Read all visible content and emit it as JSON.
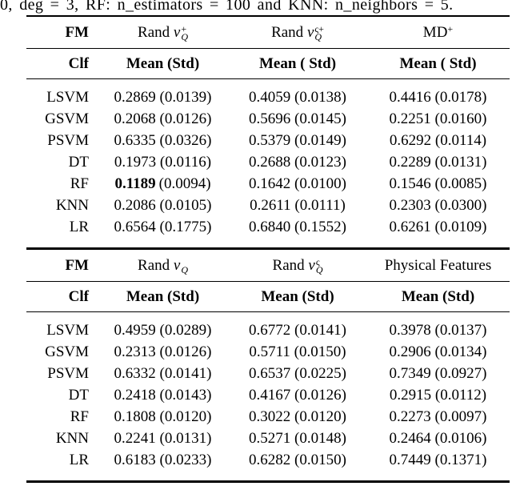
{
  "page": {
    "background": "#ffffff",
    "text_color": "#000000"
  },
  "caption_fragment": "0, deg = 3, RF: n_estimators = 100 and KNN: n_neighbors = 5.",
  "tables": [
    {
      "header_row1": {
        "fm": "FM",
        "c1": {
          "prefix": "Rand ",
          "var": "v",
          "sub": "Q",
          "sup": "+"
        },
        "c2": {
          "prefix": "Rand ",
          "var": "v",
          "sub": "Q",
          "sup": "ς+"
        },
        "c3": {
          "base": "MD",
          "sup": "+"
        }
      },
      "header_row2": {
        "clf": "Clf",
        "c1": "Mean (Std)",
        "c2": "Mean ( Std)",
        "c3": "Mean ( Std)"
      },
      "rows": [
        {
          "clf": "LSVM",
          "c1": "0.2869 (0.0139)",
          "c2": "0.4059 (0.0138)",
          "c3": "0.4416 (0.0178)"
        },
        {
          "clf": "GSVM",
          "c1": "0.2068 (0.0126)",
          "c2": "0.5696 (0.0145)",
          "c3": "0.2251 (0.0160)"
        },
        {
          "clf": "PSVM",
          "c1": "0.6335 (0.0326)",
          "c2": "0.5379 (0.0149)",
          "c3": "0.6292 (0.0114)"
        },
        {
          "clf": "DT",
          "c1": "0.1973 (0.0116)",
          "c2": "0.2688 (0.0123)",
          "c3": "0.2289 (0.0131)"
        },
        {
          "clf": "RF",
          "c1_mean": "0.1189",
          "c1_std": "(0.0094)",
          "c2": "0.1642 (0.0100)",
          "c3": "0.1546 (0.0085)"
        },
        {
          "clf": "KNN",
          "c1": "0.2086 (0.0105)",
          "c2": "0.2611 (0.0111)",
          "c3": "0.2303 (0.0300)"
        },
        {
          "clf": "LR",
          "c1": "0.6564 (0.1775)",
          "c2": "0.6840 (0.1552)",
          "c3": "0.6261 (0.0109)"
        }
      ]
    },
    {
      "header_row1": {
        "fm": "FM",
        "c1": {
          "prefix": "Rand ",
          "var": "v",
          "sub": "Q"
        },
        "c2": {
          "prefix": "Rand ",
          "var": "v",
          "sub": "Q",
          "sup": "ς"
        },
        "c3": {
          "base": "Physical Features"
        }
      },
      "header_row2": {
        "clf": "Clf",
        "c1": "Mean (Std)",
        "c2": "Mean (Std)",
        "c3": "Mean (Std)"
      },
      "rows": [
        {
          "clf": "LSVM",
          "c1": "0.4959 (0.0289)",
          "c2": "0.6772 (0.0141)",
          "c3": "0.3978 (0.0137)"
        },
        {
          "clf": "GSVM",
          "c1": "0.2313 (0.0126)",
          "c2": "0.5711 (0.0150)",
          "c3": "0.2906 (0.0134)"
        },
        {
          "clf": "PSVM",
          "c1": "0.6332 (0.0141)",
          "c2": "0.6537 (0.0225)",
          "c3": "0.7349 (0.0927)"
        },
        {
          "clf": "DT",
          "c1": "0.2418 (0.0143)",
          "c2": "0.4167 (0.0126)",
          "c3": "0.2915 (0.0112)"
        },
        {
          "clf": "RF",
          "c1": "0.1808 (0.0120)",
          "c2": "0.3022 (0.0120)",
          "c3": "0.2273 (0.0097)"
        },
        {
          "clf": "KNN",
          "c1": "0.2241 (0.0131)",
          "c2": "0.5271 (0.0148)",
          "c3": "0.2464 (0.0106)"
        },
        {
          "clf": "LR",
          "c1": "0.6183 (0.0233)",
          "c2": "0.6282 (0.0150)",
          "c3": "0.7449 (0.1371)"
        }
      ]
    }
  ]
}
